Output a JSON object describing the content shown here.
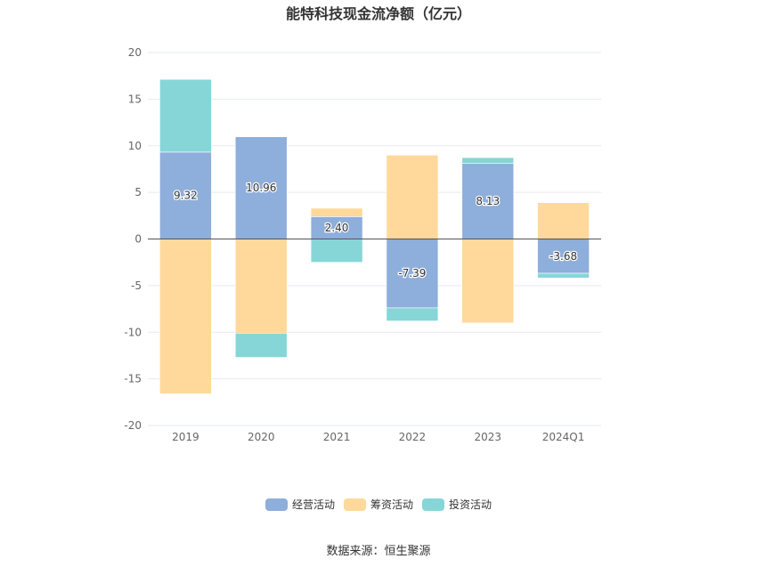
{
  "title": "能特科技现金流净额（亿元）",
  "source": "数据来源：恒生聚源",
  "chart_data": {
    "type": "bar",
    "stacked": true,
    "categories": [
      "2019",
      "2020",
      "2021",
      "2022",
      "2023",
      "2024Q1"
    ],
    "ylim": [
      -20,
      20
    ],
    "yticks": [
      20,
      15,
      10,
      5,
      0,
      -5,
      -10,
      -15,
      -20
    ],
    "grid": true,
    "legend_position": "bottom",
    "series": [
      {
        "name": "经营活动",
        "color": "#8eaedb",
        "values": [
          9.32,
          10.96,
          2.4,
          -7.39,
          8.13,
          -3.68
        ],
        "labels": [
          "9.32",
          "10.96",
          "2.40",
          "-7.39",
          "8.13",
          "-3.68"
        ]
      },
      {
        "name": "筹资活动",
        "color": "#ffd99b",
        "values": [
          -16.6,
          -10.1,
          0.9,
          9.0,
          -9.0,
          3.9
        ]
      },
      {
        "name": "投资活动",
        "color": "#86d6d8",
        "values": [
          7.8,
          -2.6,
          -2.5,
          -1.4,
          0.6,
          -0.5
        ]
      }
    ]
  }
}
